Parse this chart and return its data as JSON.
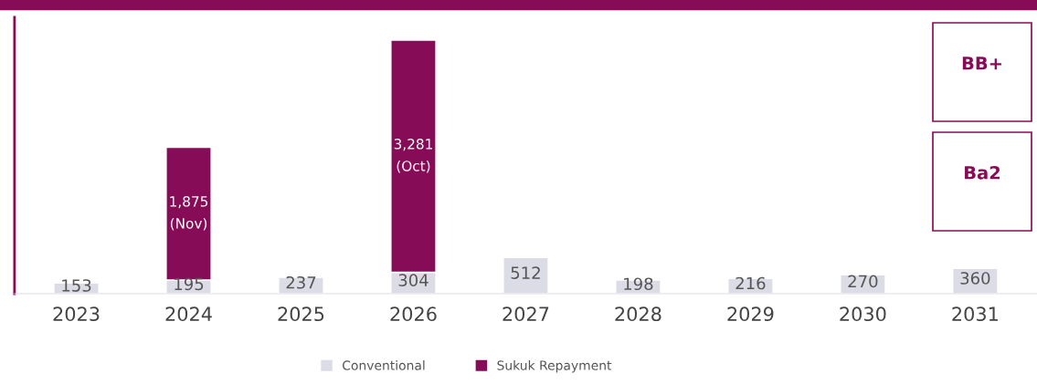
{
  "chart_data": {
    "type": "bar",
    "stacked": true,
    "categories": [
      "2023",
      "2024",
      "2025",
      "2026",
      "2027",
      "2028",
      "2029",
      "2030",
      "2031"
    ],
    "series": [
      {
        "name": "Conventional",
        "color": "#dcdce6",
        "values": [
          153,
          195,
          237,
          304,
          512,
          198,
          216,
          270,
          360
        ],
        "value_labels": [
          "153",
          "195",
          "237",
          "304",
          "512",
          "198",
          "216",
          "270",
          "360"
        ]
      },
      {
        "name": "Sukuk Repayment",
        "color": "#870c57",
        "values": [
          null,
          1875,
          null,
          3281,
          null,
          null,
          null,
          null,
          null
        ],
        "value_labels": [
          null,
          "1,875\n(Nov)",
          null,
          "3,281\n(Oct)",
          null,
          null,
          null,
          null,
          null
        ]
      }
    ],
    "annotations": [
      "BB+",
      "Ba2"
    ],
    "legend": "bottom",
    "grid": false
  }
}
